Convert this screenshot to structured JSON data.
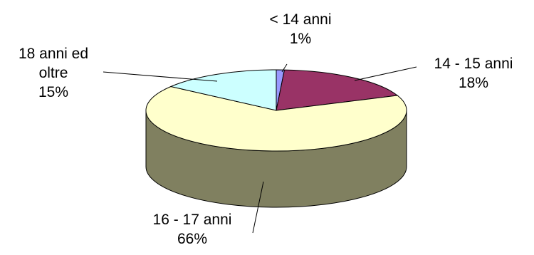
{
  "chart_data": {
    "type": "pie",
    "style": "3d-pie",
    "title": "",
    "legend": "none",
    "slices": [
      {
        "label_lines": [
          "< 14 anni"
        ],
        "percent_label": "1%",
        "value": 1,
        "color": "#9999ff"
      },
      {
        "label_lines": [
          "14 - 15 anni"
        ],
        "percent_label": "18%",
        "value": 18,
        "color": "#993366"
      },
      {
        "label_lines": [
          "16 - 17 anni"
        ],
        "percent_label": "66%",
        "value": 66,
        "color": "#ffffcc"
      },
      {
        "label_lines": [
          "18 anni ed",
          "oltre"
        ],
        "percent_label": "15%",
        "value": 15,
        "color": "#ccffff"
      }
    ],
    "side_color": "#808060"
  }
}
